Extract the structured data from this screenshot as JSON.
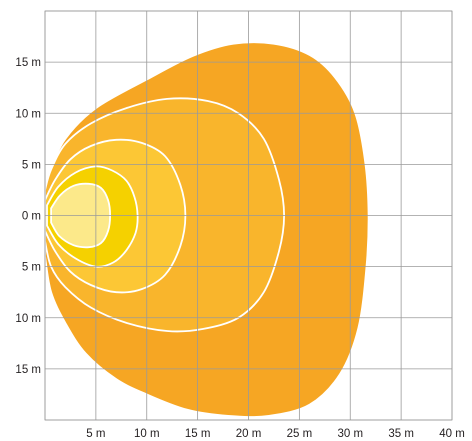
{
  "chart_data": {
    "type": "area",
    "title": "",
    "xlabel": "",
    "ylabel": "",
    "unit": "m",
    "xlim": [
      0,
      40
    ],
    "ylim": [
      -20,
      20
    ],
    "grid": true,
    "x_ticks": [
      {
        "value": 5,
        "label": "5 m"
      },
      {
        "value": 10,
        "label": "10 m"
      },
      {
        "value": 15,
        "label": "15 m"
      },
      {
        "value": 20,
        "label": "20 m"
      },
      {
        "value": 25,
        "label": "25 m"
      },
      {
        "value": 30,
        "label": "30 m"
      },
      {
        "value": 35,
        "label": "35 m"
      },
      {
        "value": 40,
        "label": "40 m"
      }
    ],
    "y_ticks": [
      {
        "value": 15,
        "label": "15 m"
      },
      {
        "value": 10,
        "label": "10 m"
      },
      {
        "value": 5,
        "label": "5 m"
      },
      {
        "value": 0,
        "label": "0 m"
      },
      {
        "value": -5,
        "label": "5 m"
      },
      {
        "value": -10,
        "label": "10 m"
      },
      {
        "value": -15,
        "label": "15 m"
      }
    ],
    "zones": [
      {
        "color": "#F6A623",
        "boundary": [
          [
            0,
            -4
          ],
          [
            0.6,
            -7.5
          ],
          [
            2,
            -10.5
          ],
          [
            4,
            -13.5
          ],
          [
            7,
            -16
          ],
          [
            10,
            -17.5
          ],
          [
            14,
            -19
          ],
          [
            18,
            -19.6
          ],
          [
            22,
            -19.6
          ],
          [
            26,
            -18.5
          ],
          [
            29,
            -15.5
          ],
          [
            30.8,
            -11
          ],
          [
            31.6,
            -5
          ],
          [
            31.8,
            0
          ],
          [
            31.5,
            5
          ],
          [
            30.5,
            10
          ],
          [
            28.5,
            13.5
          ],
          [
            26,
            15.7
          ],
          [
            22.5,
            16.8
          ],
          [
            18.5,
            16.8
          ],
          [
            14.5,
            15.6
          ],
          [
            10,
            13.3
          ],
          [
            5,
            10.5
          ],
          [
            2,
            7.5
          ],
          [
            0.6,
            4.5
          ],
          [
            0,
            2
          ]
        ]
      },
      {
        "color": "#F9B52C",
        "boundary": [
          [
            0,
            -2.5
          ],
          [
            0.6,
            -5
          ],
          [
            2,
            -7
          ],
          [
            4.5,
            -9
          ],
          [
            8,
            -10.5
          ],
          [
            12,
            -11.3
          ],
          [
            15.5,
            -11.1
          ],
          [
            19,
            -10
          ],
          [
            21.5,
            -7.5
          ],
          [
            23,
            -3.5
          ],
          [
            23.5,
            0
          ],
          [
            23,
            3.5
          ],
          [
            21.5,
            7.5
          ],
          [
            19,
            10
          ],
          [
            16,
            11.2
          ],
          [
            12,
            11.4
          ],
          [
            8,
            10.5
          ],
          [
            4.5,
            9
          ],
          [
            2,
            7
          ],
          [
            0.6,
            4.5
          ],
          [
            0,
            2.5
          ]
        ]
      },
      {
        "color": "#FCC735",
        "boundary": [
          [
            0,
            -1.5
          ],
          [
            1,
            -3.5
          ],
          [
            2.5,
            -5.5
          ],
          [
            4.5,
            -6.8
          ],
          [
            7,
            -7.5
          ],
          [
            9.5,
            -7.2
          ],
          [
            11.8,
            -5.8
          ],
          [
            13.3,
            -3
          ],
          [
            13.8,
            0
          ],
          [
            13.3,
            3
          ],
          [
            11.8,
            5.8
          ],
          [
            9.5,
            7.1
          ],
          [
            7,
            7.4
          ],
          [
            4.5,
            6.8
          ],
          [
            2.5,
            5.5
          ],
          [
            1,
            3.5
          ],
          [
            0,
            1.5
          ]
        ]
      },
      {
        "color": "#F5D100",
        "boundary": [
          [
            0.2,
            -1
          ],
          [
            1.3,
            -2.8
          ],
          [
            3,
            -4.2
          ],
          [
            5,
            -5
          ],
          [
            6.7,
            -4.6
          ],
          [
            8,
            -3.4
          ],
          [
            8.9,
            -1.7
          ],
          [
            9.1,
            0
          ],
          [
            8.8,
            1.8
          ],
          [
            8,
            3.4
          ],
          [
            6.6,
            4.4
          ],
          [
            5,
            4.8
          ],
          [
            3,
            4.2
          ],
          [
            1.3,
            2.8
          ],
          [
            0.2,
            1
          ]
        ]
      },
      {
        "color": "#FCE98A",
        "boundary": [
          [
            0.6,
            -0.7
          ],
          [
            1.4,
            -2
          ],
          [
            2.8,
            -2.9
          ],
          [
            4.3,
            -3.1
          ],
          [
            5.5,
            -2.7
          ],
          [
            6.2,
            -1.5
          ],
          [
            6.4,
            0
          ],
          [
            6.2,
            1.5
          ],
          [
            5.5,
            2.7
          ],
          [
            4.3,
            3.1
          ],
          [
            2.8,
            2.9
          ],
          [
            1.5,
            2
          ],
          [
            0.6,
            0.7
          ]
        ]
      }
    ]
  }
}
